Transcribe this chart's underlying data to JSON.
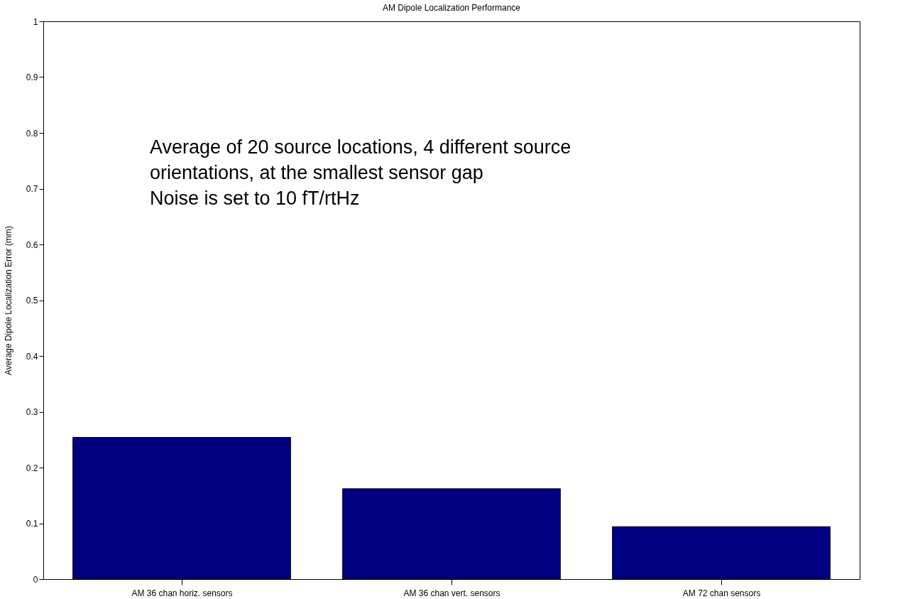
{
  "chart_data": {
    "type": "bar",
    "title": "AM Dipole Localization Performance",
    "ylabel": "Average Dipole Localization Error (mm)",
    "categories": [
      "AM 36 chan horiz. sensors",
      "AM 36 chan vert. sensors",
      "AM 72 chan sensors"
    ],
    "values": [
      0.254,
      0.162,
      0.094
    ],
    "color": "#000080",
    "ylim": [
      0,
      1
    ],
    "yticks": [
      0,
      0.1,
      0.2,
      0.3,
      0.4,
      0.5,
      0.6,
      0.7,
      0.8,
      0.9,
      1
    ],
    "grid": false,
    "annotations": [
      "Average of 20 source locations, 4 different source\norientations, at the smallest sensor gap\nNoise is set to 10 fT/rtHz"
    ]
  }
}
